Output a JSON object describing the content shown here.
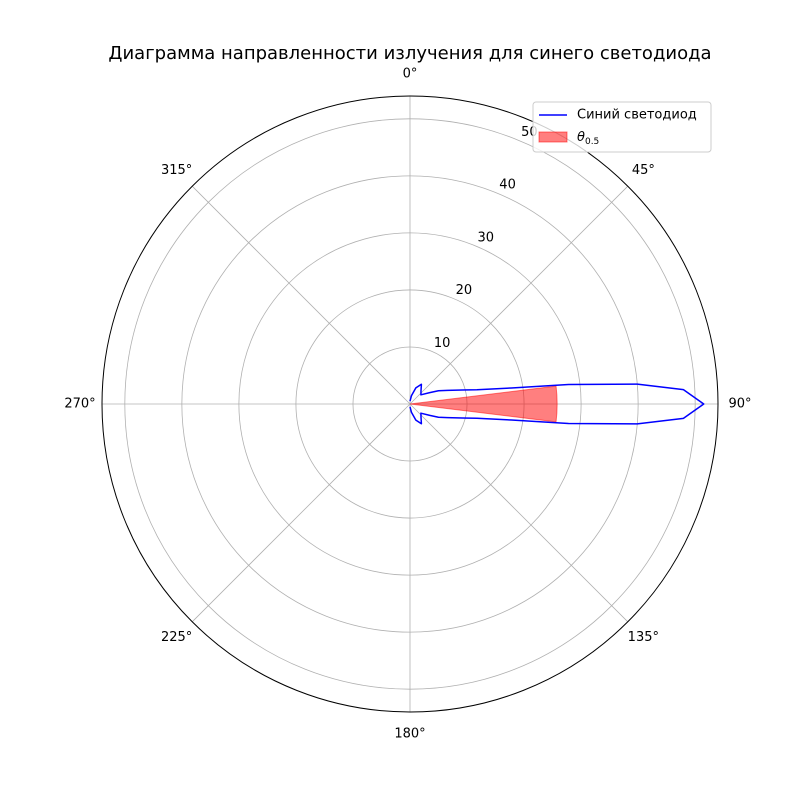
{
  "chart_data": {
    "type": "polar",
    "title": "Диаграмма направленности излучения для синего светодиода",
    "theta_zero": "N",
    "theta_direction": "clockwise",
    "rlim": [
      0,
      54
    ],
    "rticks": [
      10,
      20,
      30,
      40,
      50
    ],
    "rlabel_position": 22.5,
    "thetaticks": [
      {
        "value": 0,
        "label": "0°"
      },
      {
        "value": 45,
        "label": "45°"
      },
      {
        "value": 90,
        "label": "90°"
      },
      {
        "value": 135,
        "label": "135°"
      },
      {
        "value": 180,
        "label": "180°"
      },
      {
        "value": 225,
        "label": "225°"
      },
      {
        "value": 270,
        "label": "270°"
      },
      {
        "value": 315,
        "label": "315°"
      }
    ],
    "grid": true,
    "legend": "upper right",
    "series": [
      {
        "name": "Синий светодиод",
        "color": "#0000ff",
        "theta": [
          0,
          10,
          20,
          30,
          40,
          50,
          60,
          65,
          70,
          75,
          78,
          81,
          83,
          85,
          87,
          90,
          93,
          95,
          97,
          99,
          102,
          105,
          110,
          115,
          120,
          130,
          140,
          150,
          160,
          170,
          180
        ],
        "values": [
          0.5,
          1.5,
          3,
          4,
          3,
          2.5,
          4,
          5.5,
          7,
          9.5,
          12,
          18,
          28,
          40,
          48,
          51.5,
          48,
          40,
          28,
          18,
          12,
          9.5,
          7,
          5.5,
          4,
          2.5,
          3,
          4,
          3,
          1.5,
          0.5
        ]
      }
    ],
    "fill": {
      "name": "θ",
      "name_subscript": "0.5",
      "color": "#ff0000",
      "alpha": 0.5,
      "theta": [
        83,
        97
      ],
      "r": 25.8
    }
  }
}
